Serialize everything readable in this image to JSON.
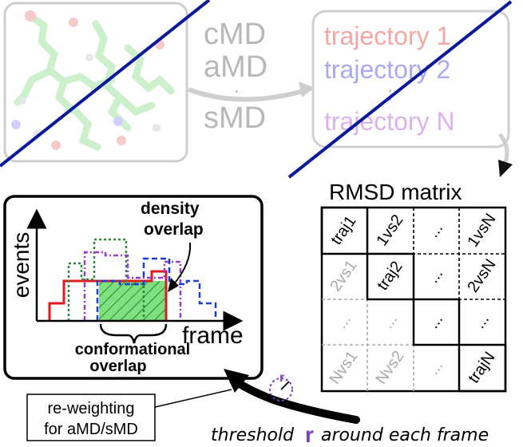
{
  "methods": {
    "cmd": "cMD",
    "amd": "aMD",
    "smd": "sMD",
    "dots": "."
  },
  "trajectories": {
    "t1": "trajectory 1",
    "t2": "trajectory 2",
    "tn": "trajectory N",
    "vdots": ":"
  },
  "matrix": {
    "title": "RMSD matrix",
    "cells": {
      "r0c0": "traj1",
      "r0c1": "1vs2",
      "r0c2": "...",
      "r0c3": "1vsN",
      "r1c0": "2vs1",
      "r1c1": "traj2",
      "r1c2": "...",
      "r1c3": "2vsN",
      "r2c0": "...",
      "r2c1": "...",
      "r2c2": "...",
      "r2c3": "...",
      "r3c0": "Nvs1",
      "r3c1": "Nvs2",
      "r3c2": "...",
      "r3c3": "trajN"
    }
  },
  "histogram": {
    "ylabel": "events",
    "xlabel": "frame",
    "density_label_1": "density",
    "density_label_2": "overlap",
    "conf_label_1": "conformational",
    "conf_label_2": "overlap"
  },
  "reweighting": {
    "line1": "re-weighting",
    "line2": "for aMD/sMD"
  },
  "threshold": {
    "word1": "threshold",
    "r": "r",
    "rest": "around each frame",
    "icon_r": "r"
  },
  "colors": {
    "traj1": "#f3a6a6",
    "traj2": "#a9a9ef",
    "trajN": "#dcb1ef",
    "slash": "#0a1a9a",
    "red": "#e31a1c",
    "green": "#2c8a3c",
    "purple": "#9a3ad6",
    "blue": "#1a3fd6",
    "fill": "#7ee07e",
    "accent": "#7b3fc4"
  }
}
